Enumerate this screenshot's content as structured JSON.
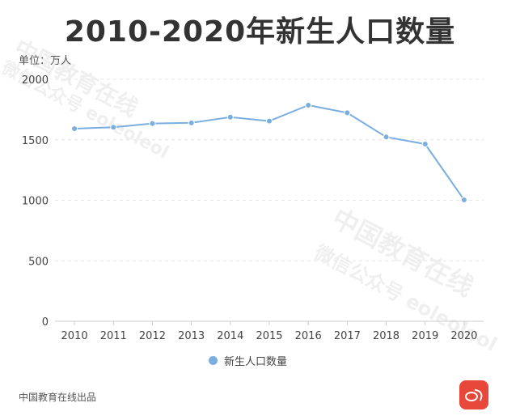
{
  "title": "2010-2020年新生人口数量",
  "unit_label": "单位：万人",
  "watermark": {
    "line1": "中国教育在线",
    "line2": "微信公众号 eoleoleol"
  },
  "footer": "中国教育在线出品",
  "colors": {
    "series": "#7aaee0",
    "grid": "#e6e6e6",
    "axis": "#cccccc",
    "logo": "#e8483a"
  },
  "logo_icon": "eol-logo",
  "chart_data": {
    "type": "line",
    "title": "2010-2020年新生人口数量",
    "xlabel": "",
    "ylabel": "单位：万人",
    "categories": [
      "2010",
      "2011",
      "2012",
      "2013",
      "2014",
      "2015",
      "2016",
      "2017",
      "2018",
      "2019",
      "2020"
    ],
    "series": [
      {
        "name": "新生人口数量",
        "values": [
          1592,
          1604,
          1635,
          1640,
          1687,
          1655,
          1786,
          1723,
          1523,
          1465,
          1003
        ]
      }
    ],
    "ylim": [
      0,
      2000
    ],
    "yticks": [
      "0",
      "500",
      "1000",
      "1500",
      "2000"
    ],
    "grid": true,
    "grid_style": "dashed",
    "legend": "bottom-center"
  }
}
